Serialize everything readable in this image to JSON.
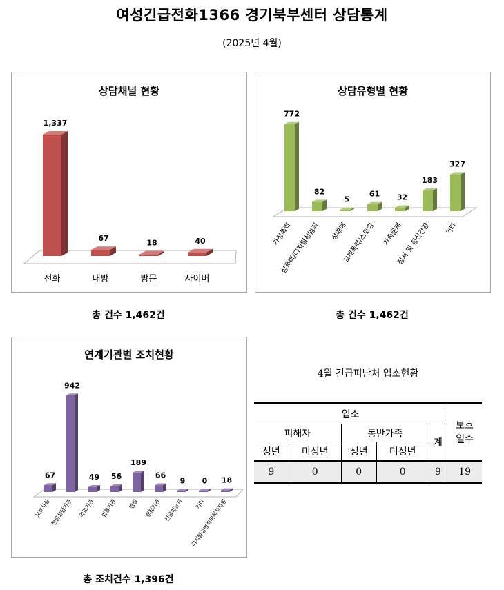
{
  "page": {
    "title": "여성긴급전화1366 경기북부센터 상담통계",
    "subtitle": "(2025년 4월)"
  },
  "chart_data": [
    {
      "type": "bar",
      "title": "상담채널 현황",
      "categories": [
        "전화",
        "내방",
        "방문",
        "사이버"
      ],
      "values": [
        1337,
        67,
        18,
        40
      ],
      "color": "#c0504d",
      "data_labels": [
        "1,337",
        "67",
        "18",
        "40"
      ],
      "total_text": "총 건수 1,462건"
    },
    {
      "type": "bar",
      "title": "상담유형별 현황",
      "categories": [
        "가정폭력",
        "성폭력/디지털성범죄",
        "성매매",
        "교제폭력/스토킹",
        "가족문제",
        "정서 및 정신건강",
        "기타"
      ],
      "values": [
        772,
        82,
        5,
        61,
        32,
        183,
        327
      ],
      "color": "#9bbb59",
      "data_labels": [
        "772",
        "82",
        "5",
        "61",
        "32",
        "183",
        "327"
      ],
      "total_text": "총 건수 1,462건"
    },
    {
      "type": "bar",
      "title": "연계기관별 조치현황",
      "categories": [
        "보호시설",
        "전문상담기관",
        "의료기관",
        "법률기관",
        "경찰",
        "행정기관",
        "긴급피난처",
        "기타",
        "디지털성범죄피해자지원"
      ],
      "values": [
        67,
        942,
        49,
        56,
        189,
        66,
        9,
        0,
        18
      ],
      "color": "#8064a2",
      "data_labels": [
        "67",
        "942",
        "49",
        "56",
        "189",
        "66",
        "9",
        "0",
        "18"
      ],
      "total_text": "총 조치건수 1,396건"
    }
  ],
  "shelter_table": {
    "title": "4월 긴급피난처 입소현황",
    "header_admission": "입소",
    "header_victim": "피해자",
    "header_family": "동반가족",
    "header_adult": "성년",
    "header_minor": "미성년",
    "header_total": "계",
    "header_protect_line1": "보호",
    "header_protect_line2": "일수",
    "row": [
      "9",
      "0",
      "0",
      "0",
      "9",
      "19"
    ]
  }
}
